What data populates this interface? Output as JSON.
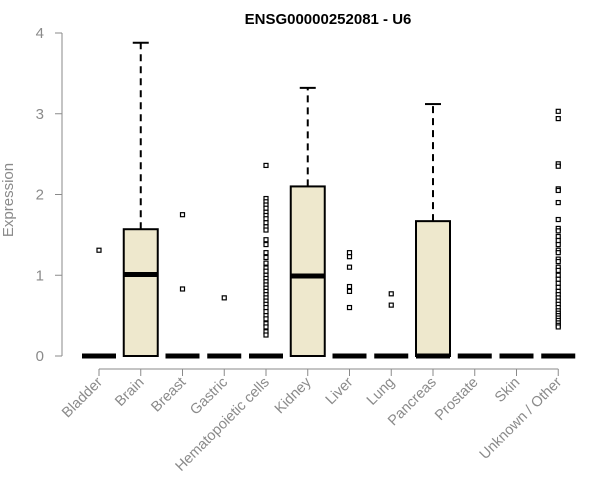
{
  "chart_data": {
    "type": "box",
    "title": "ENSG00000252081 - U6",
    "xlabel": "",
    "ylabel": "Expression",
    "ylim": [
      0,
      4
    ],
    "yticks": [
      0,
      1,
      2,
      3,
      4
    ],
    "grid": false,
    "colors": {
      "box_fill": "#eee8cd",
      "stroke": "#000000",
      "axis": "#8a8a8a",
      "title": "#000000"
    },
    "categories": [
      "Bladder",
      "Brain",
      "Breast",
      "Gastric",
      "Hematopoietic cells",
      "Kidney",
      "Liver",
      "Lung",
      "Pancreas",
      "Prostate",
      "Skin",
      "Unknown / Other"
    ],
    "boxes": [
      {
        "category": "Bladder",
        "min": 0,
        "q1": 0,
        "median": 0,
        "q3": 0,
        "max": 0,
        "outliers": [
          1.31
        ]
      },
      {
        "category": "Brain",
        "min": 0,
        "q1": 0,
        "median": 1.01,
        "q3": 1.57,
        "max": 3.88,
        "outliers": []
      },
      {
        "category": "Breast",
        "min": 0,
        "q1": 0,
        "median": 0,
        "q3": 0,
        "max": 0,
        "outliers": [
          1.75,
          0.83
        ]
      },
      {
        "category": "Gastric",
        "min": 0,
        "q1": 0,
        "median": 0,
        "q3": 0,
        "max": 0,
        "outliers": [
          0.72
        ]
      },
      {
        "category": "Hematopoietic cells",
        "min": 0,
        "q1": 0,
        "median": 0,
        "q3": 0,
        "max": 0,
        "outliers": [
          2.36,
          1.95,
          1.91,
          1.87,
          1.83,
          1.78,
          1.74,
          1.7,
          1.65,
          1.6,
          1.56,
          1.44,
          1.38,
          1.28,
          1.22,
          1.15,
          1.09,
          1.05,
          1.0,
          0.96,
          0.92,
          0.88,
          0.84,
          0.8,
          0.76,
          0.72,
          0.68,
          0.64,
          0.6,
          0.55,
          0.5,
          0.46,
          0.4,
          0.36,
          0.3,
          0.26
        ]
      },
      {
        "category": "Kidney",
        "min": 0,
        "q1": 0,
        "median": 0.99,
        "q3": 2.1,
        "max": 3.32,
        "outliers": []
      },
      {
        "category": "Liver",
        "min": 0,
        "q1": 0,
        "median": 0,
        "q3": 0,
        "max": 0,
        "outliers": [
          1.28,
          1.23,
          1.1,
          0.86,
          0.8,
          0.6
        ]
      },
      {
        "category": "Lung",
        "min": 0,
        "q1": 0,
        "median": 0,
        "q3": 0,
        "max": 0,
        "outliers": [
          0.77,
          0.63
        ]
      },
      {
        "category": "Pancreas",
        "min": 0,
        "q1": 0,
        "median": 0,
        "q3": 1.67,
        "max": 3.12,
        "outliers": []
      },
      {
        "category": "Prostate",
        "min": 0,
        "q1": 0,
        "median": 0,
        "q3": 0,
        "max": 0,
        "outliers": []
      },
      {
        "category": "Skin",
        "min": 0,
        "q1": 0,
        "median": 0,
        "q3": 0,
        "max": 0,
        "outliers": []
      },
      {
        "category": "Unknown / Other",
        "min": 0,
        "q1": 0,
        "median": 0,
        "q3": 0,
        "max": 0,
        "outliers": [
          3.03,
          2.94,
          2.38,
          2.35,
          2.07,
          2.05,
          1.9,
          1.69,
          1.58,
          1.55,
          1.48,
          1.43,
          1.38,
          1.31,
          1.28,
          1.2,
          1.17,
          1.1,
          1.06,
          1.0,
          0.95,
          0.9,
          0.85,
          0.8,
          0.76,
          0.72,
          0.68,
          0.64,
          0.6,
          0.56,
          0.53,
          0.5,
          0.47,
          0.44,
          0.41,
          0.38,
          0.36
        ]
      }
    ]
  }
}
